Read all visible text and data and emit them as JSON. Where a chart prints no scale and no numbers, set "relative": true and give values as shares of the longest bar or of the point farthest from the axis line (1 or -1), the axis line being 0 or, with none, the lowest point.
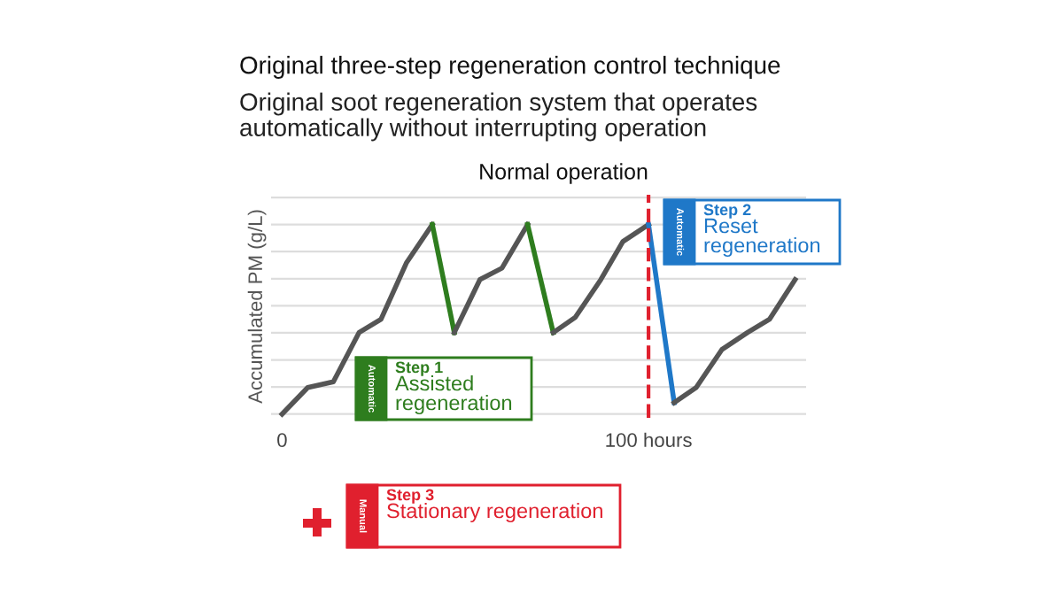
{
  "chart_data": {
    "type": "line",
    "title": "Original three-step regeneration control technique",
    "subtitle": "Original soot regeneration system that operates\nautomatically without interrupting operation",
    "ylabel": "Accumulated PM (g/L)",
    "relative": true,
    "xlim": [
      -3,
      143
    ],
    "xticks": [
      0,
      {
        "value": 100,
        "label": "100 hours"
      }
    ],
    "tick_labels": "x",
    "grid": "y",
    "marker": "none",
    "line_style": "solid",
    "series": [
      {
        "color": "#555555",
        "x": [
          0,
          7,
          14,
          21,
          27,
          34,
          41
        ],
        "values": [
          0,
          0.14,
          0.17,
          0.43,
          0.5,
          0.8,
          1
        ]
      },
      {
        "color": "#2e7d1e",
        "x": [
          41,
          47
        ],
        "values": [
          1,
          0.43
        ]
      },
      {
        "color": "#555555",
        "x": [
          47,
          54,
          60,
          67
        ],
        "values": [
          0.43,
          0.71,
          0.77,
          1
        ]
      },
      {
        "color": "#2e7d1e",
        "x": [
          67,
          74
        ],
        "values": [
          1,
          0.43
        ]
      },
      {
        "color": "#555555",
        "x": [
          74,
          80,
          87,
          93,
          100
        ],
        "values": [
          0.43,
          0.51,
          0.71,
          0.91,
          1
        ]
      },
      {
        "color": "#1f78c8",
        "x": [
          100,
          107
        ],
        "values": [
          1,
          0.06
        ]
      },
      {
        "color": "#555555",
        "x": [
          107,
          113,
          120,
          127,
          133,
          140
        ],
        "values": [
          0.06,
          0.14,
          0.34,
          0.43,
          0.5,
          0.71
        ]
      }
    ],
    "ref_lines": [
      {
        "axis": "x",
        "value": 100,
        "color": "#e0202e",
        "line_style": "dashed"
      }
    ],
    "annotations": [
      "Normal operation",
      "Automatic",
      "Step 1",
      "Assisted\nregeneration",
      "Automatic",
      "Step 2",
      "Reset\nregeneration",
      "Manual",
      "Step 3",
      "Stationary regeneration"
    ]
  }
}
